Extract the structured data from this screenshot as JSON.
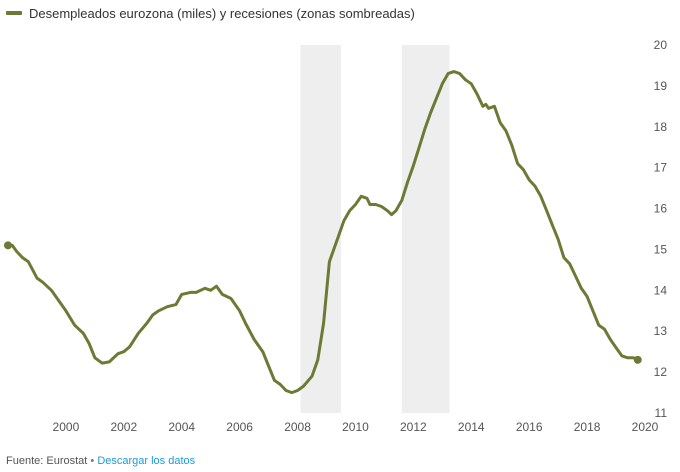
{
  "chart_data": {
    "type": "line",
    "title": "",
    "legend": {
      "position": "top-left",
      "entries": [
        {
          "label": "Desempleados eurozona (miles) y recesiones (zonas sombreadas)",
          "color": "#6b7a35"
        }
      ]
    },
    "xlabel": "",
    "ylabel": "",
    "xlim": [
      1998.0,
      2020.0
    ],
    "ylim": [
      11,
      20
    ],
    "x_ticks": [
      2000,
      2002,
      2004,
      2006,
      2008,
      2010,
      2012,
      2014,
      2016,
      2018,
      2020
    ],
    "x_tick_labels": [
      "2000",
      "2002",
      "2004",
      "2006",
      "2008",
      "2010",
      "2012",
      "2014",
      "2016",
      "2018",
      "2020"
    ],
    "y_ticks": [
      11,
      12,
      13,
      14,
      15,
      16,
      17,
      18,
      19,
      20
    ],
    "y_tick_labels": [
      "11",
      "12",
      "13",
      "14",
      "15",
      "16",
      "17",
      "18",
      "19",
      "20"
    ],
    "y_axis_position": "right",
    "grid": false,
    "recession_bands": [
      {
        "start": 2008.1,
        "end": 2009.5
      },
      {
        "start": 2011.6,
        "end": 2013.25
      }
    ],
    "series": [
      {
        "name": "",
        "color": "#6b7a35",
        "points": [
          [
            1998.0,
            15.1
          ],
          [
            1998.15,
            15.1
          ],
          [
            1998.3,
            14.95
          ],
          [
            1998.5,
            14.8
          ],
          [
            1998.7,
            14.7
          ],
          [
            1999.0,
            14.3
          ],
          [
            1999.2,
            14.2
          ],
          [
            1999.5,
            14.0
          ],
          [
            1999.7,
            13.8
          ],
          [
            2000.0,
            13.5
          ],
          [
            2000.3,
            13.15
          ],
          [
            2000.6,
            12.95
          ],
          [
            2000.8,
            12.7
          ],
          [
            2001.0,
            12.35
          ],
          [
            2001.25,
            12.22
          ],
          [
            2001.5,
            12.25
          ],
          [
            2001.8,
            12.45
          ],
          [
            2002.0,
            12.5
          ],
          [
            2002.2,
            12.62
          ],
          [
            2002.5,
            12.95
          ],
          [
            2002.8,
            13.2
          ],
          [
            2003.0,
            13.4
          ],
          [
            2003.2,
            13.5
          ],
          [
            2003.5,
            13.6
          ],
          [
            2003.8,
            13.65
          ],
          [
            2004.0,
            13.9
          ],
          [
            2004.3,
            13.95
          ],
          [
            2004.5,
            13.95
          ],
          [
            2004.8,
            14.05
          ],
          [
            2005.0,
            14.0
          ],
          [
            2005.2,
            14.1
          ],
          [
            2005.4,
            13.9
          ],
          [
            2005.7,
            13.8
          ],
          [
            2006.0,
            13.5
          ],
          [
            2006.2,
            13.2
          ],
          [
            2006.5,
            12.8
          ],
          [
            2006.8,
            12.5
          ],
          [
            2007.0,
            12.15
          ],
          [
            2007.2,
            11.8
          ],
          [
            2007.4,
            11.7
          ],
          [
            2007.6,
            11.55
          ],
          [
            2007.8,
            11.5
          ],
          [
            2008.0,
            11.55
          ],
          [
            2008.2,
            11.65
          ],
          [
            2008.5,
            11.9
          ],
          [
            2008.7,
            12.3
          ],
          [
            2008.9,
            13.2
          ],
          [
            2009.1,
            14.7
          ],
          [
            2009.4,
            15.3
          ],
          [
            2009.6,
            15.7
          ],
          [
            2009.8,
            15.95
          ],
          [
            2010.0,
            16.1
          ],
          [
            2010.2,
            16.3
          ],
          [
            2010.4,
            16.25
          ],
          [
            2010.5,
            16.1
          ],
          [
            2010.7,
            16.1
          ],
          [
            2010.9,
            16.05
          ],
          [
            2011.1,
            15.95
          ],
          [
            2011.25,
            15.85
          ],
          [
            2011.4,
            15.95
          ],
          [
            2011.6,
            16.2
          ],
          [
            2011.8,
            16.65
          ],
          [
            2012.0,
            17.05
          ],
          [
            2012.2,
            17.5
          ],
          [
            2012.4,
            17.95
          ],
          [
            2012.6,
            18.35
          ],
          [
            2012.8,
            18.7
          ],
          [
            2013.0,
            19.05
          ],
          [
            2013.2,
            19.3
          ],
          [
            2013.4,
            19.35
          ],
          [
            2013.6,
            19.3
          ],
          [
            2013.8,
            19.15
          ],
          [
            2014.0,
            19.05
          ],
          [
            2014.2,
            18.8
          ],
          [
            2014.4,
            18.5
          ],
          [
            2014.5,
            18.55
          ],
          [
            2014.6,
            18.45
          ],
          [
            2014.8,
            18.5
          ],
          [
            2015.0,
            18.1
          ],
          [
            2015.2,
            17.9
          ],
          [
            2015.4,
            17.55
          ],
          [
            2015.6,
            17.1
          ],
          [
            2015.8,
            16.95
          ],
          [
            2016.0,
            16.7
          ],
          [
            2016.2,
            16.55
          ],
          [
            2016.4,
            16.3
          ],
          [
            2016.6,
            15.95
          ],
          [
            2016.8,
            15.6
          ],
          [
            2017.0,
            15.25
          ],
          [
            2017.2,
            14.8
          ],
          [
            2017.4,
            14.65
          ],
          [
            2017.6,
            14.35
          ],
          [
            2017.8,
            14.05
          ],
          [
            2018.0,
            13.85
          ],
          [
            2018.2,
            13.5
          ],
          [
            2018.4,
            13.15
          ],
          [
            2018.6,
            13.05
          ],
          [
            2018.8,
            12.8
          ],
          [
            2019.0,
            12.6
          ],
          [
            2019.2,
            12.4
          ],
          [
            2019.4,
            12.35
          ],
          [
            2019.6,
            12.35
          ],
          [
            2019.75,
            12.3
          ]
        ]
      }
    ]
  },
  "footer": {
    "source_text": "Fuente: Eurostat",
    "separator": "•",
    "download_link": "Descargar los datos",
    "link_color": "#1a9bd7"
  }
}
